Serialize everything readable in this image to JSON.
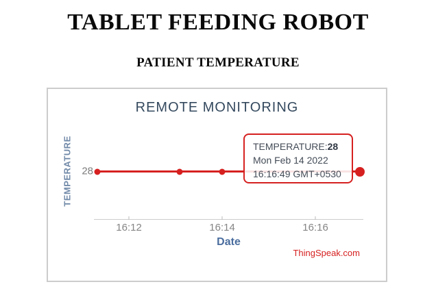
{
  "page": {
    "title": "TABLET FEEDING ROBOT",
    "subtitle": "PATIENT TEMPERATURE"
  },
  "chart": {
    "title": "REMOTE MONITORING",
    "y_axis_label": "TEMPERATURE",
    "y_tick": "28",
    "x_axis_label": "Date",
    "x_ticks": [
      "16:12",
      "16:14",
      "16:16"
    ],
    "credit": "ThingSpeak.com",
    "tooltip": {
      "label": "TEMPERATURE:",
      "value": "28",
      "date_line": "Mon Feb 14 2022",
      "time_line": "16:16:49 GMT+0530"
    },
    "colors": {
      "line": "#d62020",
      "tooltip_border": "#d62020",
      "chart_title": "#34495e",
      "y_axis_label": "#7089a8",
      "x_axis_label": "#4a6d9e",
      "tick_text": "#858585",
      "credit_link": "#d62020",
      "panel_border": "#cccccc",
      "page_title_text": "#0a0a0a"
    }
  },
  "chart_data": {
    "type": "line",
    "title": "REMOTE MONITORING",
    "xlabel": "Date",
    "ylabel": "TEMPERATURE",
    "x": [
      "16:11:19",
      "16:13:05",
      "16:14:00",
      "16:16:49"
    ],
    "series": [
      {
        "name": "TEMPERATURE",
        "values": [
          28,
          28,
          28,
          28
        ]
      }
    ],
    "x_tick_labels": [
      "16:12",
      "16:14",
      "16:16"
    ],
    "y_tick_labels": [
      "28"
    ],
    "grid": false,
    "legend": false,
    "line_color": "#d62020",
    "highlighted_point_index": 3,
    "tooltip_point": {
      "value": 28,
      "datetime": "Mon Feb 14 2022 16:16:49 GMT+0530"
    },
    "layout": {
      "marker_x_pct": [
        0,
        31.3,
        47.5,
        100
      ],
      "tick_x_pct": [
        13,
        47.6,
        82.2
      ]
    }
  }
}
